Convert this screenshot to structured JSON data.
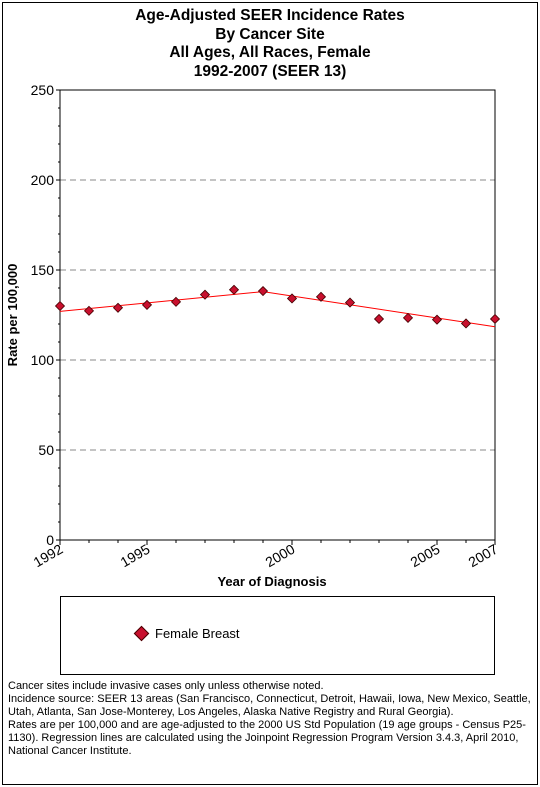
{
  "chart_data": {
    "type": "scatter",
    "title": [
      "Age-Adjusted SEER Incidence Rates",
      "By Cancer Site",
      "All Ages, All Races, Female",
      "1992-2007 (SEER 13)"
    ],
    "xlabel": "Year of Diagnosis",
    "ylabel": "Rate per 100,000",
    "xlim": [
      1992,
      2007
    ],
    "ylim": [
      0,
      250
    ],
    "yticks": [
      0,
      50,
      100,
      150,
      200,
      250
    ],
    "xtick_labels": [
      1992,
      1995,
      2000,
      2005,
      2007
    ],
    "grid": "horizontal-dashed",
    "series": [
      {
        "name": "Female Breast",
        "marker": "diamond",
        "color": "#c8102e",
        "x": [
          1992,
          1993,
          1994,
          1995,
          1996,
          1997,
          1998,
          1999,
          2000,
          2001,
          2002,
          2003,
          2004,
          2005,
          2006,
          2007
        ],
        "y": [
          130.0,
          127.3,
          129.0,
          130.6,
          132.3,
          136.3,
          139.0,
          138.3,
          134.2,
          135.1,
          131.9,
          122.8,
          123.4,
          122.4,
          120.3,
          122.8
        ]
      }
    ],
    "regression": {
      "color": "#ff0000",
      "x": [
        1992,
        1999,
        2007
      ],
      "y": [
        127.0,
        138.0,
        118.5
      ]
    }
  },
  "footnotes": [
    "Cancer sites include invasive cases only unless otherwise noted.",
    "Incidence source: SEER 13 areas (San Francisco, Connecticut, Detroit, Hawaii, Iowa, New Mexico, Seattle, Utah, Atlanta, San Jose-Monterey, Los Angeles, Alaska Native Registry and Rural Georgia).",
    "Rates are per 100,000 and are age-adjusted to the 2000 US Std Population (19 age groups - Census P25-1130). Regression lines are calculated using the Joinpoint Regression Program Version 3.4.3, April 2010, National Cancer Institute."
  ]
}
